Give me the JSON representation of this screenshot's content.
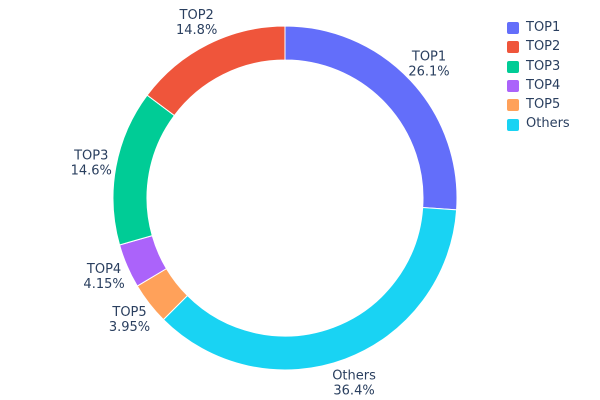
{
  "chart_data": {
    "type": "pie",
    "subtype": "donut",
    "hole_ratio": 0.8,
    "title": "",
    "labels": [
      "TOP1",
      "TOP2",
      "TOP3",
      "TOP4",
      "TOP5",
      "Others"
    ],
    "values": [
      26.1,
      14.8,
      14.6,
      4.15,
      3.95,
      36.4
    ],
    "percent_labels": [
      "26.1%",
      "14.8%",
      "14.6%",
      "4.15%",
      "3.95%",
      "36.4%"
    ],
    "colors": [
      "#636efa",
      "#ef553b",
      "#00cc96",
      "#ab63fa",
      "#ffa15a",
      "#19d3f3"
    ],
    "clockwise_draw_order": [
      0,
      5,
      4,
      3,
      2,
      1
    ],
    "start_angle_deg": 0,
    "label_position": "outside",
    "legend_position": "right",
    "legend_items": [
      "TOP1",
      "TOP2",
      "TOP3",
      "TOP4",
      "TOP5",
      "Others"
    ],
    "label_color": "#2a3f5f",
    "background": "#ffffff"
  }
}
